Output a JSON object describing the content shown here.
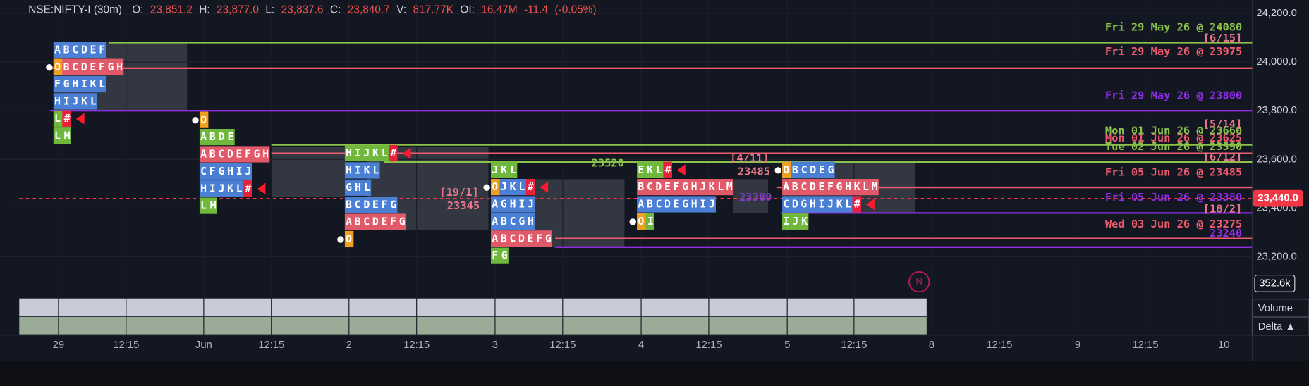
{
  "header": {
    "symbol": "NSE:NIFTY-I (30m)",
    "fields": [
      {
        "label": "O:",
        "value": "23,851.2"
      },
      {
        "label": "H:",
        "value": "23,877.0"
      },
      {
        "label": "L:",
        "value": "23,837.6"
      },
      {
        "label": "C:",
        "value": "23,840.7"
      },
      {
        "label": "V:",
        "value": "817.77K"
      },
      {
        "label": "OI:",
        "value": "16.47M"
      }
    ],
    "change": "-11.4",
    "change_pct": "(-0.05%)"
  },
  "price_axis": {
    "ylim": [
      22885,
      24255
    ],
    "ticks": [
      {
        "value": 24200,
        "label": "24,200.0"
      },
      {
        "value": 24000,
        "label": "24,000.0"
      },
      {
        "value": 23800,
        "label": "23,800.0"
      },
      {
        "value": 23600,
        "label": "23,600.0"
      },
      {
        "value": 23400,
        "label": "23,400.0"
      },
      {
        "value": 23200,
        "label": "23,200.0"
      }
    ],
    "last_price": {
      "value": 23440,
      "label": "23,440.0",
      "color": "#f23645"
    },
    "volume_label": "352.6k"
  },
  "time_axis": [
    "29",
    "12:15",
    "Jun",
    "12:15",
    "2",
    "12:15",
    "3",
    "12:15",
    "4",
    "12:15",
    "5",
    "12:15",
    "8",
    "12:15",
    "9",
    "12:15",
    "10"
  ],
  "levels": [
    {
      "label": "Fri 29 May 26 @ 24080",
      "price": 24080,
      "color": "#8bc34a"
    },
    {
      "label": "Fri 29 May 26 @ 23975",
      "price": 23975,
      "color": "#ef5b6e"
    },
    {
      "label": "Fri 29 May 26 @ 23800",
      "price": 23800,
      "color": "#8e2de2"
    },
    {
      "label": "Mon 01 Jun 26 @ 23660",
      "price": 23660,
      "color": "#8bc34a"
    },
    {
      "label": "Mon 01 Jun 26 @ 23625",
      "price": 23625,
      "color": "#ef5b6e"
    },
    {
      "label": "Tue 02 Jun 26 @ 23590",
      "price": 23590,
      "color": "#8bc34a"
    },
    {
      "label": "Fri 05 Jun 26 @ 23485",
      "price": 23485,
      "color": "#ef5b6e"
    },
    {
      "label": "Fri 05 Jun 26 @ 23380",
      "price": 23380,
      "color": "#8e2de2"
    },
    {
      "label": "Wed 03 Jun 26 @ 23275",
      "price": 23275,
      "color": "#ef5b6e"
    },
    {
      "label": "23240",
      "price": 23240,
      "color": "#8e2de2"
    }
  ],
  "tags": [
    {
      "text": "[6/15]",
      "color": "#e8788a"
    },
    {
      "text": "[5/14]",
      "color": "#e8788a"
    },
    {
      "text": "[6/12]",
      "color": "#e8788a"
    },
    {
      "text": "[18/2]",
      "color": "#e8788a"
    }
  ],
  "annotations": [
    {
      "text": "[19/1]",
      "color": "#e8788a"
    },
    {
      "text": "23345",
      "color": "#e8788a"
    },
    {
      "text": "23520",
      "color": "#8bc34a"
    },
    {
      "text": "[4/11]",
      "color": "#e8788a"
    },
    {
      "text": "23485",
      "color": "#e8788a"
    },
    {
      "text": "23380",
      "color": "#7b3fc4"
    }
  ],
  "profiles": [
    {
      "rows": [
        {
          "text": "ABCDEF",
          "color": "#4a7fd4"
        },
        {
          "text": "OBCDEFGH",
          "color": "#e05a6a"
        },
        {
          "text": "FGHIKL",
          "color": "#4a7fd4"
        },
        {
          "text": "HIJKL",
          "color": "#4a7fd4"
        },
        {
          "text": "L#",
          "color": "#6fb83c"
        },
        {
          "text": "LM",
          "color": "#6fb83c"
        }
      ]
    },
    {
      "rows": [
        {
          "text": "O",
          "color": "#f0a020"
        },
        {
          "text": "ABDE",
          "color": "#6fb83c"
        },
        {
          "text": "ABCDEFGH",
          "color": "#e05a6a"
        },
        {
          "text": "CFGHIJ",
          "color": "#4a7fd4"
        },
        {
          "text": "HIJKL#",
          "color": "#4a7fd4"
        },
        {
          "text": "LM",
          "color": "#6fb83c"
        }
      ]
    },
    {
      "rows": [
        {
          "text": "HIJKL#",
          "color": "#6fb83c"
        },
        {
          "text": "HIKL",
          "color": "#4a7fd4"
        },
        {
          "text": "GHL",
          "color": "#4a7fd4"
        },
        {
          "text": "BCDEFG",
          "color": "#4a7fd4"
        },
        {
          "text": "ABCDEFG",
          "color": "#e05a6a"
        },
        {
          "text": "O",
          "color": "#f0a020"
        }
      ]
    },
    {
      "rows": [
        {
          "text": "JKL",
          "color": "#6fb83c"
        },
        {
          "text": "OJKL#",
          "color": "#4a7fd4"
        },
        {
          "text": "AGHIJ",
          "color": "#4a7fd4"
        },
        {
          "text": "ABCGH",
          "color": "#4a7fd4"
        },
        {
          "text": "ABCDEFG",
          "color": "#e05a6a"
        },
        {
          "text": "FG",
          "color": "#6fb83c"
        }
      ]
    },
    {
      "rows": [
        {
          "text": "EKL#",
          "color": "#6fb83c"
        },
        {
          "text": "BCDEFGHJKLM",
          "color": "#e05a6a"
        },
        {
          "text": "ABCDEGHIJ",
          "color": "#4a7fd4"
        },
        {
          "text": "OI",
          "color": "#6fb83c"
        }
      ]
    },
    {
      "rows": [
        {
          "text": "OBCDEG",
          "color": "#4a7fd4"
        },
        {
          "text": "ABCDEFGHKLM",
          "color": "#e05a6a"
        },
        {
          "text": "CDGHIJKL#",
          "color": "#4a7fd4"
        },
        {
          "text": "IJK",
          "color": "#6fb83c"
        }
      ]
    }
  ],
  "indicator": {
    "badge": "N",
    "legend": [
      "Volume",
      "Delta ▲"
    ]
  }
}
